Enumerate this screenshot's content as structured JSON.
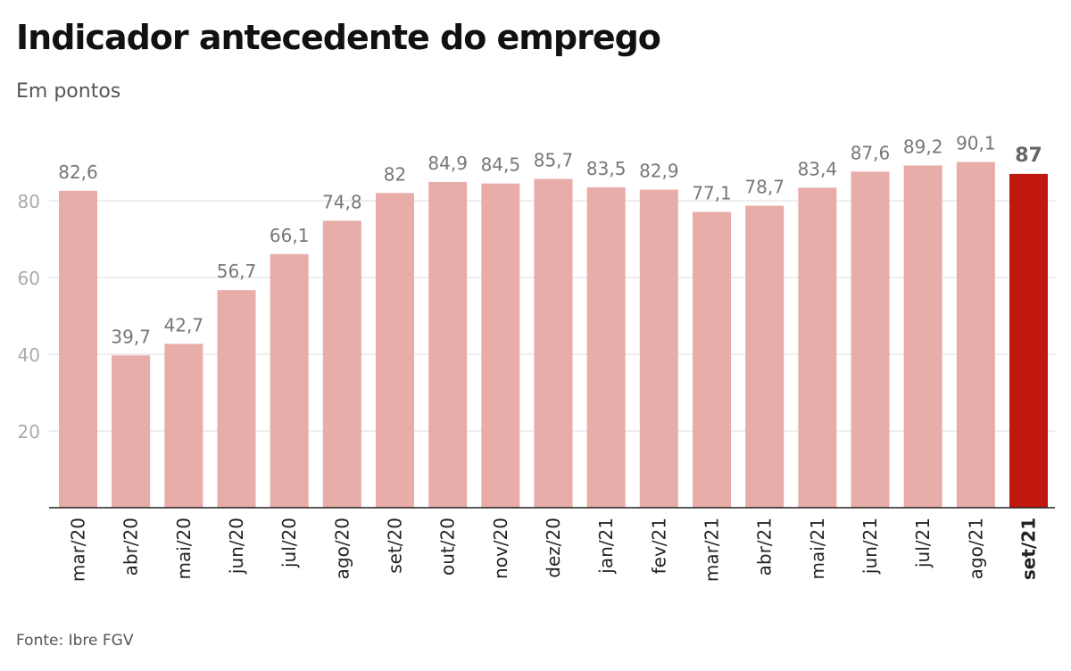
{
  "chart_data": {
    "type": "bar",
    "title": "Indicador antecedente do emprego",
    "subtitle": "Em pontos",
    "source": "Fonte: Ibre FGV",
    "categories": [
      "mar/20",
      "abr/20",
      "mai/20",
      "jun/20",
      "jul/20",
      "ago/20",
      "set/20",
      "out/20",
      "nov/20",
      "dez/20",
      "jan/21",
      "fev/21",
      "mar/21",
      "abr/21",
      "mai/21",
      "jun/21",
      "jul/21",
      "ago/21",
      "set/21"
    ],
    "values": [
      82.6,
      39.7,
      42.7,
      56.7,
      66.1,
      74.8,
      82,
      84.9,
      84.5,
      85.7,
      83.5,
      82.9,
      77.1,
      78.7,
      83.4,
      87.6,
      89.2,
      90.1,
      87
    ],
    "data_labels": [
      "82,6",
      "39,7",
      "42,7",
      "56,7",
      "66,1",
      "74,8",
      "82",
      "84,9",
      "84,5",
      "85,7",
      "83,5",
      "82,9",
      "77,1",
      "78,7",
      "83,4",
      "87,6",
      "89,2",
      "90,1",
      "87"
    ],
    "highlight_index": 18,
    "yticks": [
      20,
      40,
      60,
      80
    ],
    "ylim": [
      0,
      100
    ],
    "grid": true,
    "xlabel": "",
    "ylabel": "",
    "colors": {
      "bar": "#e8aca9",
      "highlight": "#c0170e",
      "grid": "#dddddd",
      "label": "#777777",
      "highlight_label": "#666666"
    }
  }
}
